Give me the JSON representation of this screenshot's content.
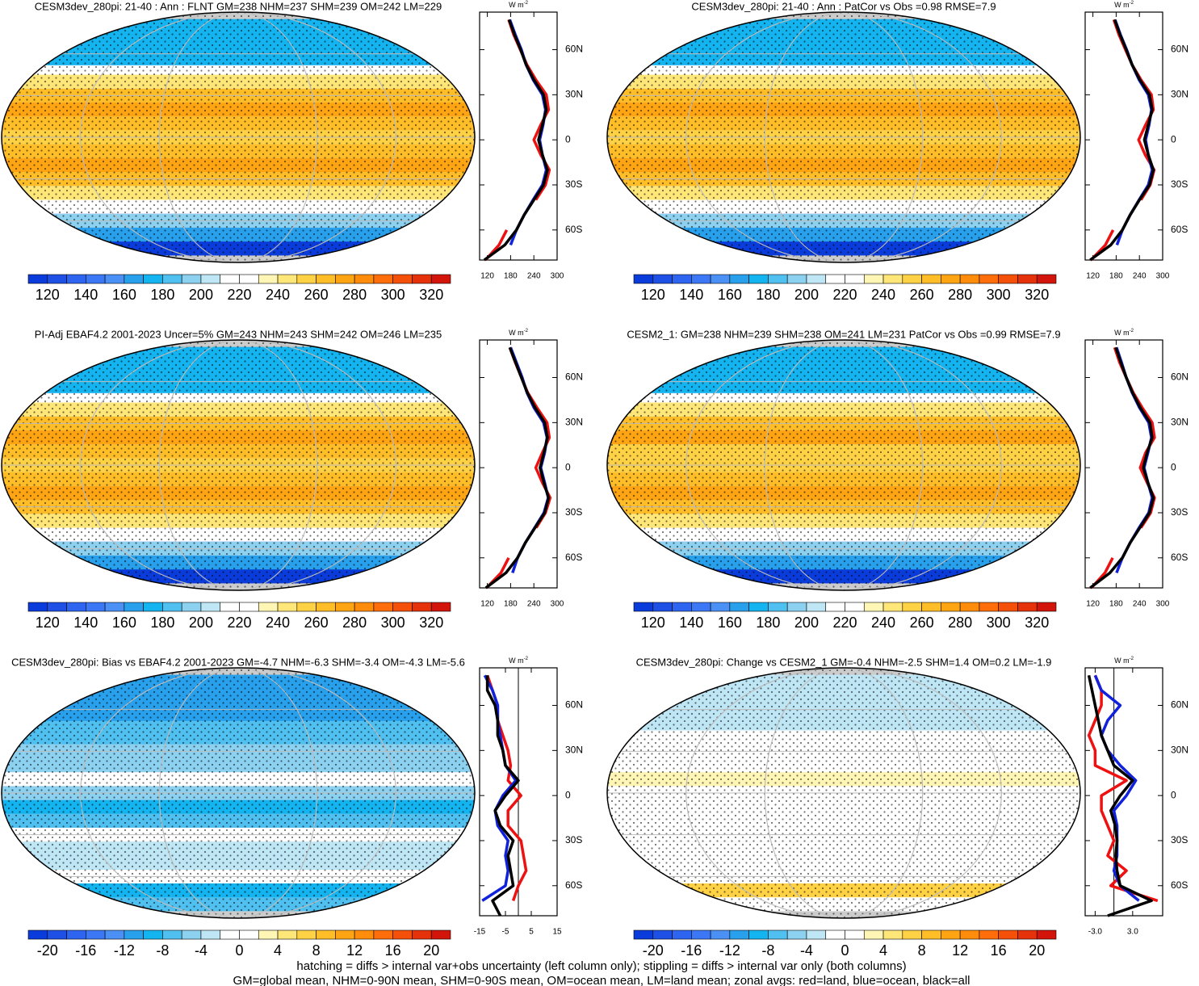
{
  "notes": [
    "hatching = diffs > internal var+obs uncertainty (left column only); stippling = diffs > internal var only (both columns)",
    "GM=global mean, NHM=0-90N mean, SHM=0-90S mean, OM=ocean mean, LM=land mean; zonal avgs: red=land, blue=ocean, black=all"
  ],
  "chart_data": [
    {
      "type": "line",
      "title": "CESM3dev_280pi: 21-40 : Ann : FLNT GM=238 NHM=237 SHM=239 OM=242 LM=229",
      "y": [
        -80,
        -70,
        -60,
        -50,
        -40,
        -30,
        -20,
        -10,
        0,
        10,
        20,
        30,
        40,
        50,
        60,
        70,
        80
      ],
      "series": [
        {
          "color": "#ee1111",
          "values": [
            115,
            150,
            170,
            null,
            245,
            270,
            280,
            258,
            240,
            258,
            278,
            272,
            245,
            222,
            205,
            188,
            175
          ]
        },
        {
          "color": "#1122dd",
          "values": [
            null,
            180,
            195,
            215,
            238,
            262,
            272,
            262,
            255,
            264,
            270,
            262,
            238,
            220,
            208,
            192,
            178
          ]
        },
        {
          "color": "#000000",
          "values": [
            112,
            165,
            195,
            215,
            240,
            265,
            275,
            262,
            252,
            262,
            272,
            265,
            240,
            220,
            206,
            190,
            176
          ]
        }
      ],
      "xlim": [
        100,
        300
      ],
      "xticks": [
        120,
        180,
        240,
        300
      ],
      "ylim": [
        -80,
        85
      ],
      "yticks": [
        {
          "value": 60,
          "label": "60N"
        },
        {
          "value": 30,
          "label": "30N"
        },
        0,
        {
          "value": -30,
          "label": "30S"
        },
        {
          "value": -60,
          "label": "60S"
        }
      ],
      "unit": "W m",
      "unit_exp": "-2",
      "zero_line": false,
      "colorbar": {
        "lim": [
          110,
          330
        ],
        "ticks": [
          120,
          140,
          160,
          180,
          200,
          220,
          240,
          260,
          280,
          300,
          320
        ],
        "colors": [
          "#0a3cdb",
          "#1e50e6",
          "#2d64f0",
          "#3c78f5",
          "#4a90f5",
          "#28a0ec",
          "#14b4f0",
          "#50c0f0",
          "#8cd2f0",
          "#bee6f5",
          "#ffffff",
          "#ffffff",
          "#fff5b4",
          "#ffe678",
          "#ffd246",
          "#ffbe28",
          "#ffa514",
          "#ff8c0a",
          "#ff6e0a",
          "#f5500a",
          "#e6320a",
          "#d2140a"
        ]
      }
    },
    {
      "type": "line",
      "title": "CESM3dev_280pi: 21-40 : Ann : PatCor vs Obs =0.98 RMSE=7.9",
      "y": [
        -80,
        -70,
        -60,
        -50,
        -40,
        -30,
        -20,
        -10,
        0,
        10,
        20,
        30,
        40,
        50,
        60,
        70,
        80
      ],
      "series": [
        {
          "color": "#ee1111",
          "values": [
            115,
            152,
            172,
            null,
            244,
            268,
            278,
            255,
            238,
            256,
            276,
            271,
            244,
            221,
            204,
            187,
            174
          ]
        },
        {
          "color": "#1122dd",
          "values": [
            null,
            182,
            196,
            216,
            239,
            263,
            273,
            263,
            256,
            265,
            271,
            263,
            239,
            221,
            207,
            191,
            177
          ]
        },
        {
          "color": "#000000",
          "values": [
            113,
            166,
            196,
            216,
            240,
            266,
            276,
            263,
            253,
            263,
            273,
            266,
            241,
            221,
            206,
            190,
            176
          ]
        }
      ],
      "xlim": [
        100,
        300
      ],
      "xticks": [
        120,
        180,
        240,
        300
      ],
      "ylim": [
        -80,
        85
      ],
      "yticks": [
        {
          "value": 60,
          "label": "60N"
        },
        {
          "value": 30,
          "label": "30N"
        },
        0,
        {
          "value": -30,
          "label": "30S"
        },
        {
          "value": -60,
          "label": "60S"
        }
      ],
      "unit": "W m",
      "unit_exp": "-2",
      "zero_line": false,
      "colorbar": {
        "lim": [
          110,
          330
        ],
        "ticks": [
          120,
          140,
          160,
          180,
          200,
          220,
          240,
          260,
          280,
          300,
          320
        ],
        "colors": [
          "#0a3cdb",
          "#1e50e6",
          "#2d64f0",
          "#3c78f5",
          "#4a90f5",
          "#28a0ec",
          "#14b4f0",
          "#50c0f0",
          "#8cd2f0",
          "#bee6f5",
          "#ffffff",
          "#ffffff",
          "#fff5b4",
          "#ffe678",
          "#ffd246",
          "#ffbe28",
          "#ffa514",
          "#ff8c0a",
          "#ff6e0a",
          "#f5500a",
          "#e6320a",
          "#d2140a"
        ]
      }
    },
    {
      "type": "line",
      "title": "PI-Adj EBAF4.2 2001-2023 Uncer=5% GM=243 NHM=243 SHM=242 OM=246 LM=235",
      "y": [
        -80,
        -70,
        -60,
        -50,
        -40,
        -30,
        -20,
        -10,
        0,
        10,
        20,
        30,
        40,
        50,
        60,
        70,
        80
      ],
      "series": [
        {
          "color": "#ee1111",
          "values": [
            118,
            155,
            175,
            null,
            246,
            270,
            282,
            262,
            245,
            262,
            280,
            274,
            248,
            224,
            208,
            192,
            178
          ]
        },
        {
          "color": "#1122dd",
          "values": [
            null,
            185,
            198,
            218,
            242,
            266,
            277,
            268,
            258,
            268,
            274,
            265,
            240,
            222,
            210,
            195,
            180
          ]
        },
        {
          "color": "#000000",
          "values": [
            116,
            168,
            198,
            218,
            243,
            268,
            278,
            266,
            256,
            266,
            275,
            268,
            243,
            223,
            208,
            193,
            178
          ]
        }
      ],
      "xlim": [
        100,
        300
      ],
      "xticks": [
        120,
        180,
        240,
        300
      ],
      "ylim": [
        -80,
        85
      ],
      "yticks": [
        {
          "value": 60,
          "label": "60N"
        },
        {
          "value": 30,
          "label": "30N"
        },
        0,
        {
          "value": -30,
          "label": "30S"
        },
        {
          "value": -60,
          "label": "60S"
        }
      ],
      "unit": "W m",
      "unit_exp": "-2",
      "zero_line": false,
      "colorbar": {
        "lim": [
          110,
          330
        ],
        "ticks": [
          120,
          140,
          160,
          180,
          200,
          220,
          240,
          260,
          280,
          300,
          320
        ],
        "colors": [
          "#0a3cdb",
          "#1e50e6",
          "#2d64f0",
          "#3c78f5",
          "#4a90f5",
          "#28a0ec",
          "#14b4f0",
          "#50c0f0",
          "#8cd2f0",
          "#bee6f5",
          "#ffffff",
          "#ffffff",
          "#fff5b4",
          "#ffe678",
          "#ffd246",
          "#ffbe28",
          "#ffa514",
          "#ff8c0a",
          "#ff6e0a",
          "#f5500a",
          "#e6320a",
          "#d2140a"
        ]
      }
    },
    {
      "type": "line",
      "title": "CESM2_1: GM=238 NHM=239 SHM=238 OM=241 LM=231 PatCor vs Obs =0.99 RMSE=7.9",
      "y": [
        -80,
        -70,
        -60,
        -50,
        -40,
        -30,
        -20,
        -10,
        0,
        10,
        20,
        30,
        40,
        50,
        60,
        70,
        80
      ],
      "series": [
        {
          "color": "#ee1111",
          "values": [
            116,
            151,
            171,
            null,
            244,
            269,
            279,
            260,
            242,
            256,
            279,
            273,
            247,
            224,
            206,
            189,
            176
          ]
        },
        {
          "color": "#1122dd",
          "values": [
            null,
            181,
            196,
            216,
            239,
            264,
            273,
            262,
            252,
            262,
            271,
            264,
            240,
            221,
            206,
            194,
            181
          ]
        },
        {
          "color": "#000000",
          "values": [
            113,
            164,
            196,
            216,
            241,
            266,
            276,
            262,
            250,
            260,
            273,
            267,
            242,
            222,
            206,
            192,
            179
          ]
        }
      ],
      "xlim": [
        100,
        300
      ],
      "xticks": [
        120,
        180,
        240,
        300
      ],
      "ylim": [
        -80,
        85
      ],
      "yticks": [
        {
          "value": 60,
          "label": "60N"
        },
        {
          "value": 30,
          "label": "30N"
        },
        0,
        {
          "value": -30,
          "label": "30S"
        },
        {
          "value": -60,
          "label": "60S"
        }
      ],
      "unit": "W m",
      "unit_exp": "-2",
      "zero_line": false,
      "colorbar": {
        "lim": [
          110,
          330
        ],
        "ticks": [
          120,
          140,
          160,
          180,
          200,
          220,
          240,
          260,
          280,
          300,
          320
        ],
        "colors": [
          "#0a3cdb",
          "#1e50e6",
          "#2d64f0",
          "#3c78f5",
          "#4a90f5",
          "#28a0ec",
          "#14b4f0",
          "#50c0f0",
          "#8cd2f0",
          "#bee6f5",
          "#ffffff",
          "#ffffff",
          "#fff5b4",
          "#ffe678",
          "#ffd246",
          "#ffbe28",
          "#ffa514",
          "#ff8c0a",
          "#ff6e0a",
          "#f5500a",
          "#e6320a",
          "#d2140a"
        ]
      }
    },
    {
      "type": "line",
      "title": "CESM3dev_280pi: Bias vs EBAF4.2 2001-2023 GM=-4.7 NHM=-6.3 SHM=-3.4 OM=-4.3 LM=-5.6",
      "y": [
        -80,
        -70,
        -60,
        -50,
        -40,
        -30,
        -20,
        -10,
        0,
        10,
        20,
        30,
        40,
        50,
        60,
        70,
        80
      ],
      "series": [
        {
          "color": "#ee1111",
          "values": [
            null,
            -2,
            0,
            3,
            2,
            1,
            -4,
            -4,
            1,
            -4,
            -3,
            -4,
            -6,
            -8,
            -8,
            -10,
            -12
          ]
        },
        {
          "color": "#1122dd",
          "values": [
            null,
            -14,
            -5,
            -4,
            -5,
            -4,
            -8,
            -9,
            -6,
            -1,
            -5,
            -6,
            -7,
            -8,
            -8,
            -10,
            -13
          ]
        },
        {
          "color": "#000000",
          "values": [
            -7,
            -10,
            -2,
            -3,
            -4,
            -2,
            -7,
            -9,
            -5,
            0,
            -5,
            -6,
            -8,
            -8,
            -9,
            -12,
            -12
          ]
        }
      ],
      "xlim": [
        -15,
        15
      ],
      "xticks": [
        -15,
        -5,
        5,
        15
      ],
      "ylim": [
        -80,
        85
      ],
      "yticks": [
        {
          "value": 60,
          "label": "60N"
        },
        {
          "value": 30,
          "label": "30N"
        },
        0,
        {
          "value": -30,
          "label": "30S"
        },
        {
          "value": -60,
          "label": "60S"
        }
      ],
      "unit": "W m",
      "unit_exp": "-2",
      "zero_line": true,
      "colorbar": {
        "lim": [
          -22,
          22
        ],
        "ticks": [
          -20,
          -16,
          -12,
          -8,
          -4,
          0,
          4,
          8,
          12,
          16,
          20
        ],
        "colors": [
          "#0a3cdb",
          "#1e50e6",
          "#2d64f0",
          "#3c78f5",
          "#4a90f5",
          "#28a0ec",
          "#14b4f0",
          "#50c0f0",
          "#8cd2f0",
          "#bee6f5",
          "#ffffff",
          "#ffffff",
          "#fff5b4",
          "#ffe678",
          "#ffd246",
          "#ffbe28",
          "#ffa514",
          "#ff8c0a",
          "#ff6e0a",
          "#f5500a",
          "#e6320a",
          "#d2140a"
        ]
      }
    },
    {
      "type": "line",
      "title": "CESM3dev_280pi: Change vs CESM2_1 GM=-0.4 NHM=-2.5 SHM=1.4 OM=0.2 LM=-1.9",
      "y": [
        -80,
        -70,
        -60,
        -50,
        -40,
        -30,
        -20,
        -10,
        0,
        10,
        20,
        30,
        40,
        50,
        60,
        70,
        80
      ],
      "series": [
        {
          "color": "#ee1111",
          "values": [
            null,
            7,
            -0.5,
            2,
            -1,
            0,
            -1,
            -2,
            -2,
            2,
            -3,
            -3,
            -4,
            -3,
            -2,
            -2,
            -3
          ]
        },
        {
          "color": "#1122dd",
          "values": [
            null,
            4,
            1,
            0,
            0.5,
            0.5,
            0.5,
            0,
            2,
            3.5,
            1,
            -1,
            -2,
            -1,
            1,
            -2,
            -3
          ]
        },
        {
          "color": "#000000",
          "values": [
            -1,
            6,
            1,
            0.5,
            0.3,
            0.5,
            0.2,
            -0.5,
            1,
            3,
            0,
            -1,
            -2,
            -2.5,
            -3,
            -3.5,
            -4
          ]
        }
      ],
      "xlim": [
        -4.6,
        7.8
      ],
      "xticks": [
        {
          "value": -3,
          "label": "-3.0"
        },
        {
          "value": 3,
          "label": "3.0"
        }
      ],
      "ylim": [
        -80,
        85
      ],
      "yticks": [
        {
          "value": 60,
          "label": "60N"
        },
        {
          "value": 30,
          "label": "30N"
        },
        0,
        {
          "value": -30,
          "label": "30S"
        },
        {
          "value": -60,
          "label": "60S"
        }
      ],
      "unit": "W m",
      "unit_exp": "-2",
      "zero_line": true,
      "colorbar": {
        "lim": [
          -22,
          22
        ],
        "ticks": [
          -20,
          -16,
          -12,
          -8,
          -4,
          0,
          4,
          8,
          12,
          16,
          20
        ],
        "colors": [
          "#0a3cdb",
          "#1e50e6",
          "#2d64f0",
          "#3c78f5",
          "#4a90f5",
          "#28a0ec",
          "#14b4f0",
          "#50c0f0",
          "#8cd2f0",
          "#bee6f5",
          "#ffffff",
          "#ffffff",
          "#fff5b4",
          "#ffe678",
          "#ffd246",
          "#ffbe28",
          "#ffa514",
          "#ff8c0a",
          "#ff6e0a",
          "#f5500a",
          "#e6320a",
          "#d2140a"
        ]
      }
    }
  ]
}
